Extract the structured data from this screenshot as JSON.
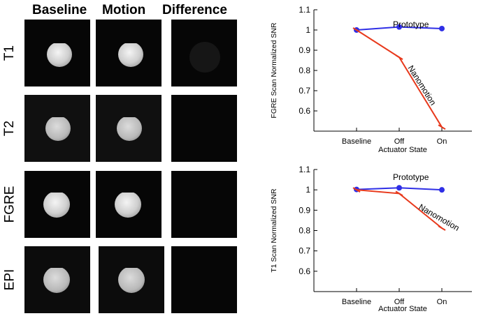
{
  "panel": {
    "columns": [
      "Baseline",
      "Motion",
      "Difference"
    ],
    "rows": [
      "T1",
      "T2",
      "FGRE",
      "EPI"
    ]
  },
  "chart_data": [
    {
      "type": "line",
      "categories": [
        "Baseline",
        "Off",
        "On"
      ],
      "xlabel": "Actuator State",
      "ylabel": "FGRE Scan Normalized SNR",
      "ylim": [
        0.5,
        1.1
      ],
      "yticks": [
        0.6,
        0.7,
        0.8,
        0.9,
        1,
        1.1
      ],
      "grid": false,
      "series": [
        {
          "name": "Prototype",
          "values": [
            1.0,
            1.015,
            1.007
          ],
          "color": "#2f2fe6",
          "marker": "circle"
        },
        {
          "name": "Nanomotion",
          "values": [
            1.0,
            0.865,
            0.52
          ],
          "color": "#e8391c",
          "marker": "tick"
        }
      ]
    },
    {
      "type": "line",
      "categories": [
        "Baseline",
        "Off",
        "On"
      ],
      "xlabel": "Actuator State",
      "ylabel": "T1 Scan Normalized SNR",
      "ylim": [
        0.5,
        1.1
      ],
      "yticks": [
        0.6,
        0.7,
        0.8,
        0.9,
        1,
        1.1
      ],
      "grid": false,
      "series": [
        {
          "name": "Prototype",
          "values": [
            1.002,
            1.01,
            1.0
          ],
          "color": "#2f2fe6",
          "marker": "circle"
        },
        {
          "name": "Nanomotion",
          "values": [
            1.0,
            0.982,
            0.812
          ],
          "color": "#e8391c",
          "marker": "tick"
        }
      ]
    }
  ]
}
